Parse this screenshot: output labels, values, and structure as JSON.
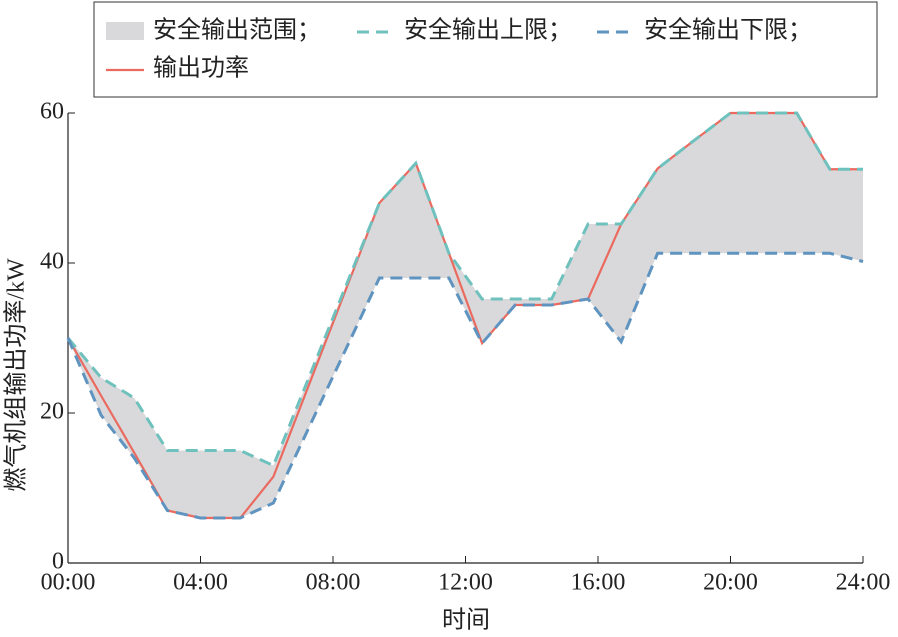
{
  "chart_data": {
    "type": "line",
    "x_label": "时间",
    "y_label": "燃气机组输出功率/kW",
    "x": [
      0,
      1,
      2,
      3,
      4,
      5.2,
      6.2,
      9.4,
      10.5,
      11.5,
      12.5,
      13.5,
      14.6,
      15.7,
      16.7,
      17.8,
      18.8,
      20,
      22,
      23,
      24
    ],
    "band": {
      "name": "安全输出范围；",
      "color": "#d9d9db"
    },
    "series": [
      {
        "name": "安全输出上限；",
        "color": "#6fc1bd",
        "dash": true,
        "values": [
          30,
          24.7,
          22,
          15,
          15,
          15,
          13,
          48,
          53.3,
          41.3,
          35.2,
          35.2,
          35.2,
          45.2,
          45.2,
          52.6,
          56,
          60,
          60,
          52.5,
          52.5
        ]
      },
      {
        "name": "安全输出下限；",
        "color": "#5f93c0",
        "dash": true,
        "values": [
          30,
          19.7,
          14,
          7,
          6,
          6,
          8,
          38,
          38,
          38,
          29.3,
          34.4,
          34.4,
          35.2,
          29.5,
          41.3,
          41.3,
          41.3,
          41.3,
          41.3,
          40.2
        ]
      },
      {
        "name": "输出功率",
        "color": "#ea6a5f",
        "dash": false,
        "values": [
          30,
          22.3,
          14.7,
          7,
          6,
          6,
          11.5,
          48,
          53.3,
          41.3,
          29.3,
          34.4,
          34.4,
          35.2,
          45.2,
          52.6,
          56,
          60,
          60,
          52.5,
          52.5
        ]
      }
    ],
    "xlim": [
      0,
      24
    ],
    "xticks": [
      {
        "value": 0,
        "label": "00:00"
      },
      {
        "value": 4,
        "label": "04:00"
      },
      {
        "value": 8,
        "label": "08:00"
      },
      {
        "value": 12,
        "label": "12:00"
      },
      {
        "value": 16,
        "label": "16:00"
      },
      {
        "value": 20,
        "label": "20:00"
      },
      {
        "value": 24,
        "label": "24:00"
      }
    ],
    "ylim": [
      0,
      60
    ],
    "yticks": [
      0,
      20,
      40,
      60
    ]
  }
}
